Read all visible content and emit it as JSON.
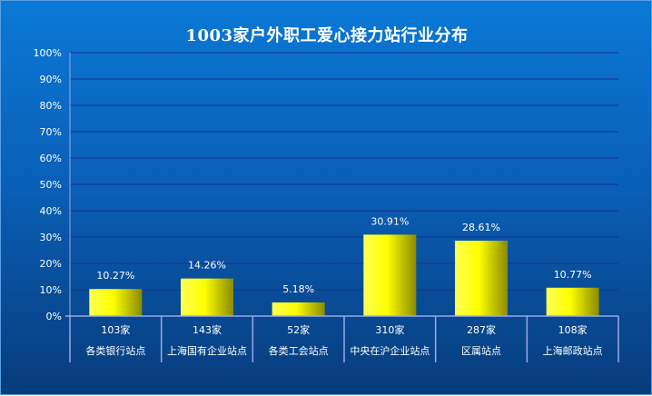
{
  "chart_data": {
    "type": "bar",
    "title": "1003家户外职工爱心接力站行业分布",
    "categories": [
      {
        "count": "103家",
        "name": "各类银行站点"
      },
      {
        "count": "143家",
        "name": "上海国有企业站点"
      },
      {
        "count": "52家",
        "name": "各类工会站点"
      },
      {
        "count": "310家",
        "name": "中央在沪企业站点"
      },
      {
        "count": "287家",
        "name": "区属站点"
      },
      {
        "count": "108家",
        "name": "上海邮政站点"
      }
    ],
    "values": [
      10.27,
      14.26,
      5.18,
      30.91,
      28.61,
      10.77
    ],
    "value_labels": [
      "10.27%",
      "14.26%",
      "5.18%",
      "30.91%",
      "28.61%",
      "10.77%"
    ],
    "ylim": [
      0,
      100
    ],
    "yticks": [
      "0%",
      "10%",
      "20%",
      "30%",
      "40%",
      "50%",
      "60%",
      "70%",
      "80%",
      "90%",
      "100%"
    ],
    "grid": true,
    "legend": "none",
    "colors": {
      "bar_light": "#ffff33",
      "bar_dark": "#8a8a00",
      "gridline": "#1a2f8a",
      "axis": "#9aa8e8",
      "text": "#ffffff"
    }
  }
}
